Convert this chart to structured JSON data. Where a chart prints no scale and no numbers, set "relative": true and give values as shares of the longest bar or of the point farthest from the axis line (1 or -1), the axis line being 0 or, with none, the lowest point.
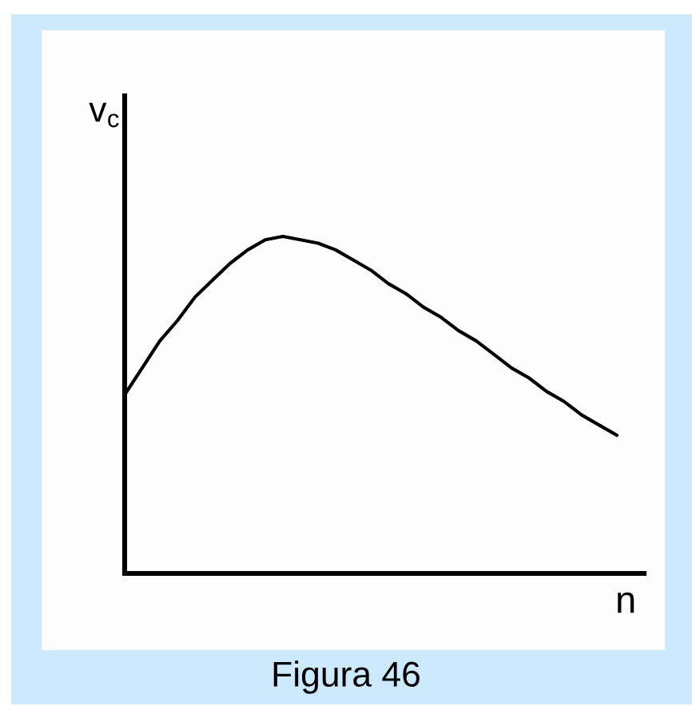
{
  "chart_data": {
    "type": "line",
    "relative": true,
    "xlabel": "n",
    "ylabel": "v$_{c}$",
    "annotations": [
      "Figura 46"
    ],
    "categories": [
      null,
      null,
      null,
      null,
      null,
      null,
      null,
      null,
      null,
      null,
      null,
      null,
      null,
      null,
      null,
      null,
      null,
      null,
      null,
      null,
      null,
      null,
      null,
      null,
      null,
      null,
      null,
      null,
      null
    ],
    "series": [
      {
        "color": "#000000",
        "values": [
          0.53,
          0.61,
          0.69,
          0.75,
          0.82,
          0.87,
          0.92,
          0.96,
          0.99,
          1,
          0.99,
          0.98,
          0.96,
          0.93,
          0.9,
          0.86,
          0.83,
          0.79,
          0.76,
          0.72,
          0.69,
          0.65,
          0.61,
          0.58,
          0.54,
          0.51,
          0.47,
          0.44,
          0.41
        ]
      }
    ]
  }
}
